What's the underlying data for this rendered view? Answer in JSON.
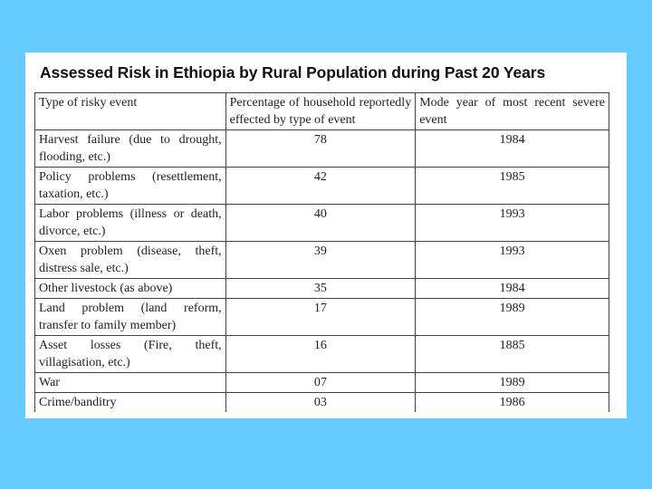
{
  "title": "Assessed Risk in Ethiopia by Rural Population during Past 20 Years",
  "table": {
    "headers": [
      "Type of risky event",
      "Percentage of household reportedly effected by type of event",
      "Mode year of most recent severe event"
    ],
    "rows": [
      {
        "event": "Harvest failure (due to drought, flooding, etc.)",
        "percentage": "78",
        "year": "1984"
      },
      {
        "event": "Policy problems (resettlement, taxation, etc.)",
        "percentage": "42",
        "year": "1985"
      },
      {
        "event": "Labor problems (illness or death, divorce, etc.)",
        "percentage": "40",
        "year": "1993"
      },
      {
        "event": "Oxen problem (disease, theft, distress sale, etc.)",
        "percentage": "39",
        "year": "1993"
      },
      {
        "event": "Other livestock (as above)",
        "percentage": "35",
        "year": "1984"
      },
      {
        "event": "Land problem (land reform, transfer to family member)",
        "percentage": "17",
        "year": "1989"
      },
      {
        "event": "Asset losses (Fire, theft, villagisation, etc.)",
        "percentage": "16",
        "year": "1885"
      },
      {
        "event": "War",
        "percentage": "07",
        "year": "1989"
      },
      {
        "event": "Crime/banditry",
        "percentage": "03",
        "year": "1986"
      }
    ]
  },
  "colors": {
    "background": "#66ccff",
    "panel": "#ffffff",
    "border": "#444444"
  }
}
